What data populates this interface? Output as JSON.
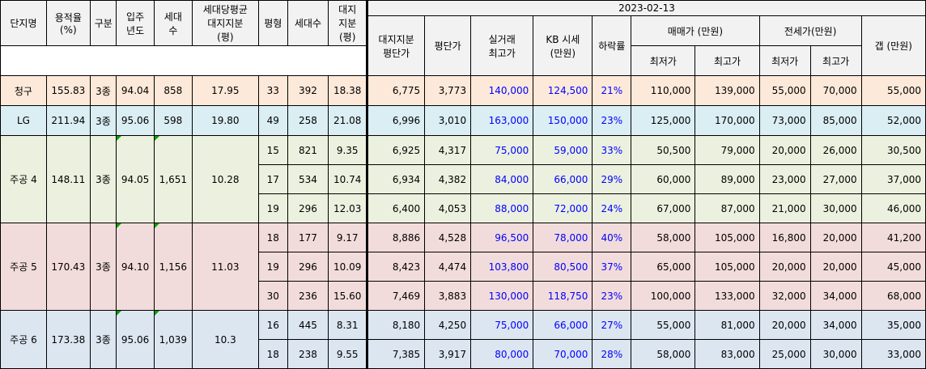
{
  "date": "2023-02-13",
  "headers": {
    "complex": "단지명",
    "far": "용적율\n(%)",
    "type": "구분",
    "year": "입주\n년도",
    "households": "세대\n수",
    "avg_land": "세대당평균\n대지지분\n(평)",
    "pyeong": "평형",
    "units": "세대수",
    "land": "대지\n지분\n(평)",
    "land_price": "대지지분\n평단가",
    "pyeong_price": "평단가",
    "actual_max": "실거래\n최고가",
    "kb": "KB 시세\n(만원)",
    "drop": "하락률",
    "sale": "매매가 (만원)",
    "jeonse": "전세가(만원)",
    "gap": "갭 (만원)",
    "min": "최저가",
    "max": "최고가"
  },
  "complexes": [
    {
      "name": "청구",
      "far": "155.83",
      "type": "3종",
      "year": "94.04",
      "households": "858",
      "avg_land": "17.95",
      "rows": [
        {
          "p": "33",
          "u": "392",
          "land": "18.38",
          "lp": "6,775",
          "pp": "3,773",
          "am": "140,000",
          "kb": "124,500",
          "drop": "21%",
          "smin": "110,000",
          "smax": "139,000",
          "jmin": "55,000",
          "jmax": "70,000",
          "gap": "55,000"
        }
      ]
    },
    {
      "name": "LG",
      "far": "211.94",
      "type": "3종",
      "year": "95.06",
      "households": "598",
      "avg_land": "19.80",
      "rows": [
        {
          "p": "49",
          "u": "258",
          "land": "21.08",
          "lp": "6,996",
          "pp": "3,010",
          "am": "163,000",
          "kb": "150,000",
          "drop": "23%",
          "smin": "125,000",
          "smax": "170,000",
          "jmin": "73,000",
          "jmax": "85,000",
          "gap": "52,000"
        }
      ]
    },
    {
      "name": "주공 4",
      "far": "148.11",
      "type": "3종",
      "year": "94.05",
      "households": "1,651",
      "avg_land": "10.28",
      "rows": [
        {
          "p": "15",
          "u": "821",
          "land": "9.35",
          "lp": "6,925",
          "pp": "4,317",
          "am": "75,000",
          "kb": "59,000",
          "drop": "33%",
          "smin": "50,500",
          "smax": "79,000",
          "jmin": "20,000",
          "jmax": "26,000",
          "gap": "30,500"
        },
        {
          "p": "17",
          "u": "534",
          "land": "10.74",
          "lp": "6,934",
          "pp": "4,382",
          "am": "84,000",
          "kb": "66,000",
          "drop": "29%",
          "smin": "60,000",
          "smax": "89,000",
          "jmin": "23,000",
          "jmax": "27,000",
          "gap": "37,000"
        },
        {
          "p": "19",
          "u": "296",
          "land": "12.03",
          "lp": "6,400",
          "pp": "4,053",
          "am": "88,000",
          "kb": "72,000",
          "drop": "24%",
          "smin": "67,000",
          "smax": "87,000",
          "jmin": "21,000",
          "jmax": "30,000",
          "gap": "46,000"
        }
      ]
    },
    {
      "name": "주공 5",
      "far": "170.43",
      "type": "3종",
      "year": "94.10",
      "households": "1,156",
      "avg_land": "11.03",
      "rows": [
        {
          "p": "18",
          "u": "177",
          "land": "9.17",
          "lp": "8,886",
          "pp": "4,528",
          "am": "96,500",
          "kb": "78,000",
          "drop": "40%",
          "smin": "58,000",
          "smax": "105,000",
          "jmin": "16,800",
          "jmax": "20,000",
          "gap": "41,200"
        },
        {
          "p": "19",
          "u": "296",
          "land": "10.09",
          "lp": "8,423",
          "pp": "4,474",
          "am": "103,800",
          "kb": "80,500",
          "drop": "37%",
          "smin": "65,000",
          "smax": "105,000",
          "jmin": "20,000",
          "jmax": "20,000",
          "gap": "45,000"
        },
        {
          "p": "30",
          "u": "236",
          "land": "15.60",
          "lp": "7,469",
          "pp": "3,883",
          "am": "130,000",
          "kb": "118,750",
          "drop": "23%",
          "smin": "100,000",
          "smax": "133,000",
          "jmin": "32,000",
          "jmax": "34,000",
          "gap": "68,000"
        }
      ]
    },
    {
      "name": "주공 6",
      "far": "173.38",
      "type": "3종",
      "year": "95.06",
      "households": "1,039",
      "avg_land": "10.3",
      "rows": [
        {
          "p": "16",
          "u": "445",
          "land": "8.31",
          "lp": "8,180",
          "pp": "4,250",
          "am": "75,000",
          "kb": "66,000",
          "drop": "27%",
          "smin": "55,000",
          "smax": "81,000",
          "jmin": "20,000",
          "jmax": "34,000",
          "gap": "35,000"
        },
        {
          "p": "18",
          "u": "238",
          "land": "9.55",
          "lp": "7,385",
          "pp": "3,917",
          "am": "80,000",
          "kb": "70,000",
          "drop": "28%",
          "smin": "58,000",
          "smax": "83,000",
          "jmin": "25,000",
          "jmax": "30,000",
          "gap": "33,000"
        }
      ]
    }
  ]
}
